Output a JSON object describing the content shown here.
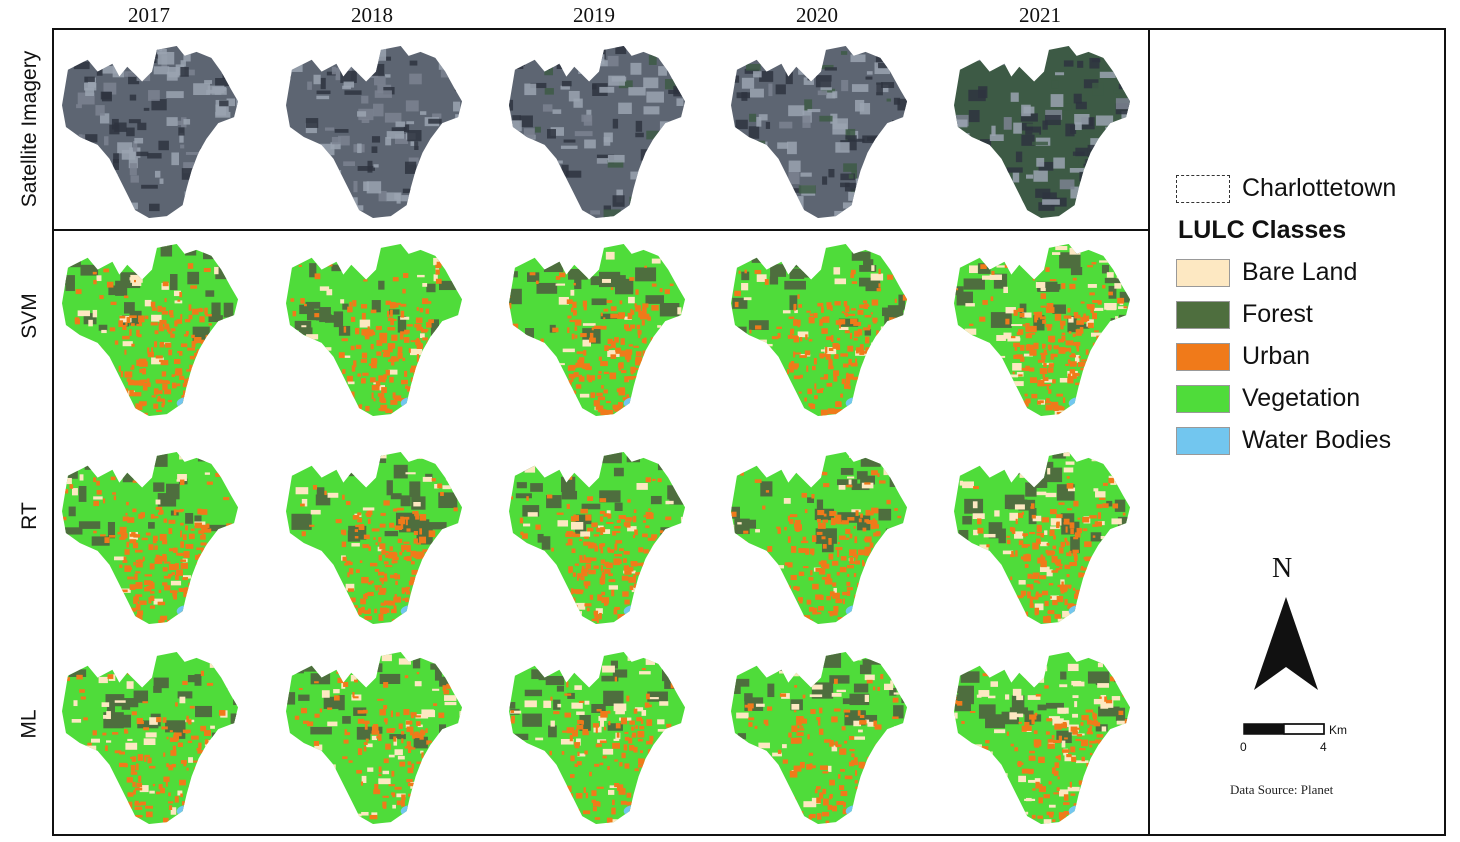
{
  "columns": [
    "2017",
    "2018",
    "2019",
    "2020",
    "2021"
  ],
  "rows": [
    "Satellite Imagery",
    "SVM",
    "RT",
    "ML"
  ],
  "legend": {
    "boundary_label": "Charlottetown",
    "title": "LULC Classes",
    "classes": [
      {
        "label": "Bare Land",
        "color": "#fde8c2"
      },
      {
        "label": "Forest",
        "color": "#4e6e3e"
      },
      {
        "label": "Urban",
        "color": "#f07a1a"
      },
      {
        "label": "Vegetation",
        "color": "#4fdc3a"
      },
      {
        "label": "Water Bodies",
        "color": "#72c6ef"
      }
    ]
  },
  "north_arrow": {
    "label": "N"
  },
  "scale_bar": {
    "start": "0",
    "end": "4",
    "unit": "Km"
  },
  "source": "Data Source: Planet",
  "colors": {
    "satellite_base": "#5d6572",
    "satellite_light": "#9aa3b0",
    "satellite_dark": "#2e3440",
    "satellite_green": "#3d5a45"
  }
}
